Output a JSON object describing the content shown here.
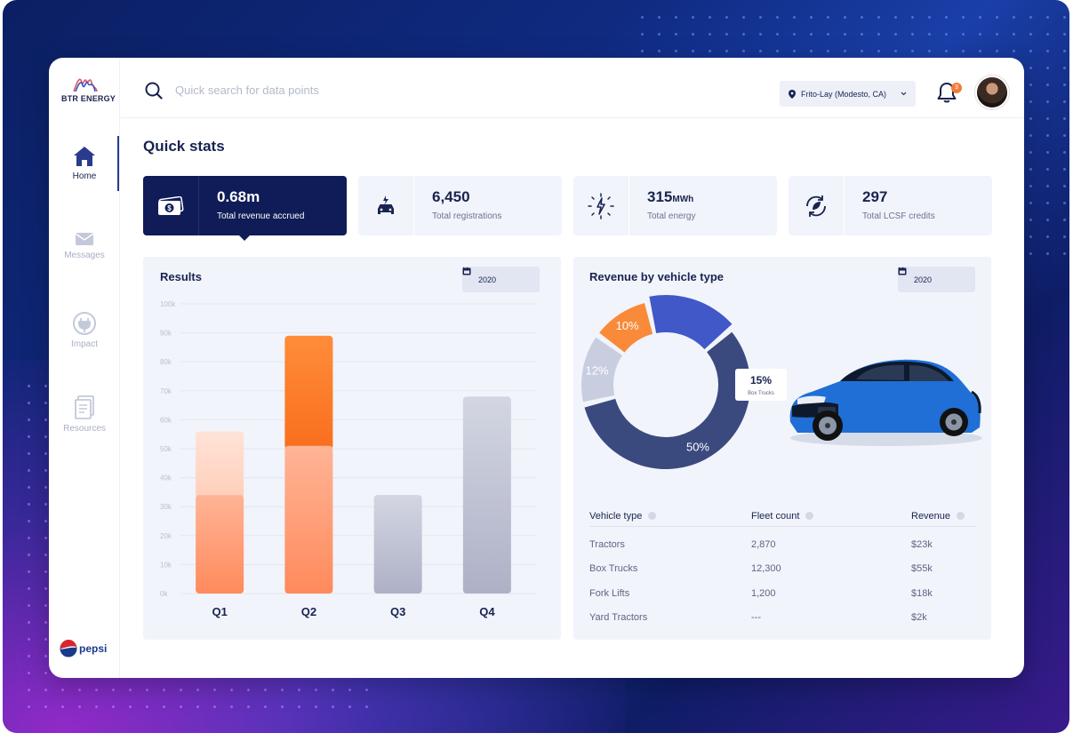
{
  "brand": {
    "name": "BTR ENERGY",
    "partner": "pepsi"
  },
  "sidebar": {
    "items": [
      {
        "label": "Home",
        "icon": "home-icon",
        "active": true
      },
      {
        "label": "Messages",
        "icon": "envelope-icon"
      },
      {
        "label": "Impact",
        "icon": "plug-icon"
      },
      {
        "label": "Resources",
        "icon": "document-icon"
      }
    ]
  },
  "header": {
    "search_placeholder": "Quick search for data points",
    "location": "Frito-Lay (Modesto, CA)",
    "notifications": "3"
  },
  "quick_stats": {
    "title": "Quick stats",
    "items": [
      {
        "value": "0.68m",
        "unit": "",
        "label": "Total revenue accrued",
        "icon": "money-icon"
      },
      {
        "value": "6,450",
        "unit": "",
        "label": "Total registrations",
        "icon": "charging-car-icon"
      },
      {
        "value": "315",
        "unit": "MWh",
        "label": "Total energy",
        "icon": "energy-bolt-icon"
      },
      {
        "value": "297",
        "unit": "",
        "label": "Total LCSF credits",
        "icon": "recycle-leaf-icon"
      }
    ]
  },
  "results": {
    "title": "Results",
    "year": "2020",
    "chart_data": {
      "type": "bar",
      "categories": [
        "Q1",
        "Q2",
        "Q3",
        "Q4"
      ],
      "ylim": [
        0,
        100000
      ],
      "yticks": [
        "0k",
        "10k",
        "20k",
        "30k",
        "40k",
        "50k",
        "60k",
        "70k",
        "80k",
        "90k",
        "100k"
      ],
      "series": [
        {
          "values": [
            34000,
            51000,
            34000,
            68000
          ]
        },
        {
          "values": [
            22000,
            38000,
            0,
            0
          ]
        }
      ],
      "colors": {
        "lower": "#ff8a5c",
        "upper_q1": "#ffc7b0",
        "upper_q2": "#f97b26",
        "neutral": "#b4b8cc"
      }
    }
  },
  "revenue": {
    "title": "Revenue by vehicle type",
    "year": "2020",
    "chart_data": {
      "type": "pie",
      "slices": [
        {
          "label": "10%",
          "value": 10,
          "color": "#f98a3a"
        },
        {
          "label": "15%",
          "sublabel": "Box Trucks",
          "value": 15,
          "color": "#4158c8"
        },
        {
          "label": "50%",
          "value": 50,
          "color": "#3b4a7e"
        },
        {
          "label": "12%",
          "value": 12,
          "color": "#c8cde0"
        }
      ]
    },
    "table": {
      "headers": [
        "Vehicle type",
        "Fleet count",
        "Revenue"
      ],
      "rows": [
        [
          "Tractors",
          "2,870",
          "$23k"
        ],
        [
          "Box Trucks",
          "12,300",
          "$55k"
        ],
        [
          "Fork Lifts",
          "1,200",
          "$18k"
        ],
        [
          "Yard Tractors",
          "---",
          "$2k"
        ]
      ]
    }
  }
}
